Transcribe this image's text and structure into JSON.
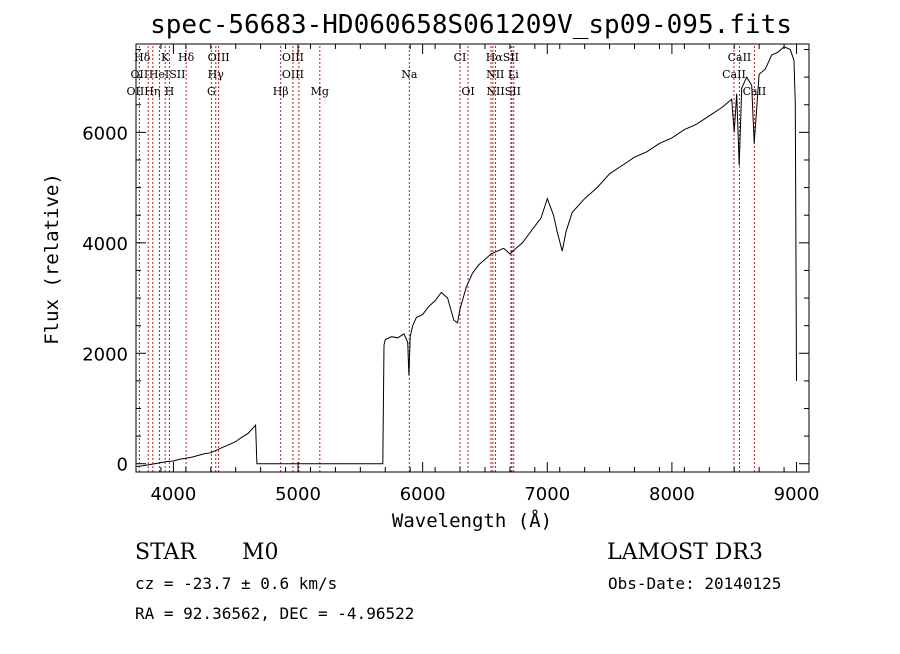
{
  "chart_data": {
    "type": "line",
    "title": "spec-56683-HD060658S061209V_sp09-095.fits",
    "xlabel": "Wavelength (Å)",
    "ylabel": "Flux (relative)",
    "xlim": [
      3700,
      9100
    ],
    "ylim": [
      -150,
      7600
    ],
    "x_ticks": [
      4000,
      5000,
      6000,
      7000,
      8000,
      9000
    ],
    "y_ticks": [
      0,
      2000,
      4000,
      6000
    ],
    "grid": false,
    "series": [
      {
        "name": "flux",
        "x": [
          3700,
          3750,
          3800,
          3850,
          3900,
          3950,
          4000,
          4050,
          4100,
          4150,
          4200,
          4250,
          4300,
          4350,
          4400,
          4450,
          4500,
          4550,
          4600,
          4640,
          4660,
          4670,
          4700,
          5000,
          5300,
          5600,
          5680,
          5690,
          5700,
          5750,
          5800,
          5850,
          5880,
          5890,
          5900,
          5920,
          5950,
          6000,
          6050,
          6100,
          6150,
          6200,
          6250,
          6280,
          6300,
          6350,
          6400,
          6450,
          6500,
          6550,
          6600,
          6650,
          6700,
          6750,
          6800,
          6850,
          6900,
          6950,
          7000,
          7050,
          7080,
          7120,
          7150,
          7200,
          7300,
          7400,
          7500,
          7600,
          7700,
          7800,
          7900,
          8000,
          8100,
          8200,
          8300,
          8400,
          8480,
          8500,
          8520,
          8540,
          8560,
          8600,
          8640,
          8660,
          8700,
          8750,
          8800,
          8850,
          8900,
          8950,
          8980,
          8990,
          9000
        ],
        "values": [
          -50,
          -40,
          -20,
          0,
          20,
          40,
          50,
          80,
          100,
          120,
          150,
          180,
          200,
          250,
          300,
          350,
          400,
          480,
          550,
          650,
          700,
          0,
          0,
          0,
          0,
          0,
          0,
          2150,
          2250,
          2300,
          2280,
          2350,
          2200,
          1600,
          2300,
          2500,
          2650,
          2700,
          2850,
          2950,
          3100,
          3000,
          2600,
          2550,
          2800,
          3200,
          3450,
          3600,
          3700,
          3800,
          3850,
          3900,
          3800,
          3900,
          4000,
          4150,
          4300,
          4450,
          4800,
          4500,
          4200,
          3850,
          4200,
          4550,
          4800,
          5000,
          5250,
          5400,
          5550,
          5650,
          5800,
          5900,
          6050,
          6150,
          6300,
          6450,
          6600,
          6000,
          6700,
          5400,
          6800,
          7000,
          6850,
          5800,
          7050,
          7150,
          7400,
          7450,
          7550,
          7500,
          7300,
          6500,
          1500
        ]
      }
    ],
    "line_labels": [
      {
        "label": "Hδ",
        "wavelength": 3750,
        "row": 1
      },
      {
        "label": "K",
        "wavelength": 3934,
        "row": 1
      },
      {
        "label": "Hδ",
        "wavelength": 4102,
        "row": 1
      },
      {
        "label": "OIII",
        "wavelength": 4363,
        "row": 1
      },
      {
        "label": "OIII",
        "wavelength": 4959,
        "row": 1
      },
      {
        "label": "CI",
        "wavelength": 6300,
        "row": 1
      },
      {
        "label": "HαSII",
        "wavelength": 6640,
        "row": 1
      },
      {
        "label": "CaII",
        "wavelength": 8542,
        "row": 1
      },
      {
        "label": "OII",
        "wavelength": 3727,
        "row": 2
      },
      {
        "label": "HeISII",
        "wavelength": 3950,
        "row": 2
      },
      {
        "label": "Hγ",
        "wavelength": 4340,
        "row": 2
      },
      {
        "label": "OIII",
        "wavelength": 4959,
        "row": 2
      },
      {
        "label": "Na",
        "wavelength": 5893,
        "row": 2
      },
      {
        "label": "NII Li",
        "wavelength": 6640,
        "row": 2
      },
      {
        "label": "CaII",
        "wavelength": 8498,
        "row": 2
      },
      {
        "label": "OIIHη",
        "wavelength": 3760,
        "row": 3
      },
      {
        "label": "H",
        "wavelength": 3968,
        "row": 3
      },
      {
        "label": "G",
        "wavelength": 4305,
        "row": 3
      },
      {
        "label": "Hβ",
        "wavelength": 4861,
        "row": 3
      },
      {
        "label": "Mg",
        "wavelength": 5175,
        "row": 3
      },
      {
        "label": "OI",
        "wavelength": 6364,
        "row": 3
      },
      {
        "label": "NIISII",
        "wavelength": 6650,
        "row": 3
      },
      {
        "label": "CaII",
        "wavelength": 8662,
        "row": 3
      }
    ],
    "marker_lines": [
      3727,
      3798,
      3835,
      3889,
      3934,
      3968,
      4102,
      4305,
      4340,
      4363,
      4861,
      4959,
      5007,
      5175,
      5893,
      6300,
      6364,
      6548,
      6563,
      6584,
      6708,
      6716,
      6731,
      8498,
      8542,
      8662
    ]
  },
  "info": {
    "obj_class": "STAR",
    "subclass": "M0",
    "survey": "LAMOST DR3",
    "cz": "cz = -23.7 ± 0.6 km/s",
    "obs_date": "Obs-Date: 20140125",
    "radec": "RA =  92.36562, DEC =  -4.96522"
  },
  "colors": {
    "axes": "#000000",
    "spectrum": "#000000",
    "marker_lines": "#b22222",
    "labels": "#000000"
  }
}
